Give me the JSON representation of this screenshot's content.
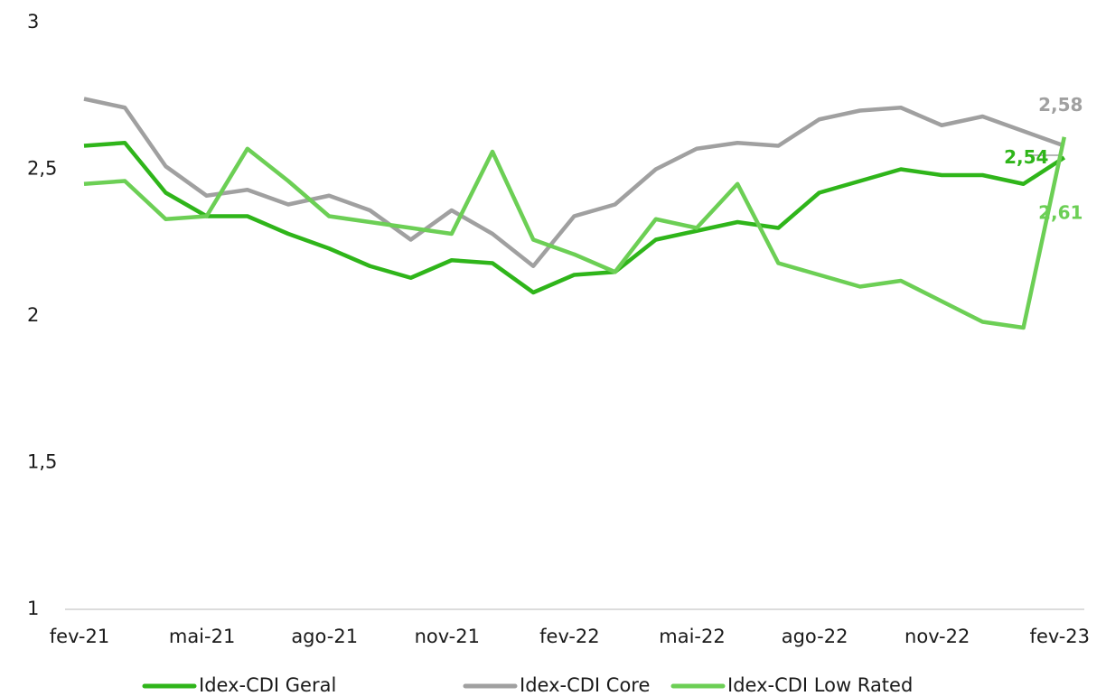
{
  "chart_data": {
    "type": "line",
    "categories": [
      "fev-21",
      null,
      null,
      "mai-21",
      null,
      null,
      "ago-21",
      null,
      null,
      "nov-21",
      null,
      null,
      "fev-22",
      null,
      null,
      "mai-22",
      null,
      null,
      "ago-22",
      null,
      null,
      "nov-22",
      null,
      null,
      "fev-23"
    ],
    "series": [
      {
        "name": "Idex-CDI Geral",
        "color": "#2fb51a",
        "values": [
          2.58,
          2.59,
          2.42,
          2.34,
          2.34,
          2.28,
          2.23,
          2.17,
          2.13,
          2.19,
          2.18,
          2.08,
          2.14,
          2.15,
          2.26,
          2.29,
          2.32,
          2.3,
          2.42,
          2.46,
          2.5,
          2.48,
          2.48,
          2.45,
          2.54
        ],
        "value_labels": [
          null,
          null,
          null,
          null,
          null,
          null,
          null,
          null,
          null,
          null,
          null,
          null,
          null,
          null,
          null,
          null,
          null,
          null,
          null,
          null,
          null,
          null,
          null,
          null,
          "2,54"
        ]
      },
      {
        "name": "Idex-CDI Core",
        "color": "#a0a0a0",
        "values": [
          2.74,
          2.71,
          2.51,
          2.41,
          2.43,
          2.38,
          2.41,
          2.36,
          2.26,
          2.36,
          2.28,
          2.17,
          2.34,
          2.38,
          2.5,
          2.57,
          2.59,
          2.58,
          2.67,
          2.7,
          2.71,
          2.65,
          2.68,
          2.63,
          2.58
        ],
        "value_labels": [
          null,
          null,
          null,
          null,
          null,
          null,
          null,
          null,
          null,
          null,
          null,
          null,
          null,
          null,
          null,
          null,
          null,
          null,
          null,
          null,
          null,
          null,
          null,
          null,
          "2,58"
        ]
      },
      {
        "name": "Idex-CDI Low Rated",
        "color": "#6ccf55",
        "values": [
          2.45,
          2.46,
          2.33,
          2.34,
          2.57,
          2.46,
          2.34,
          2.32,
          2.3,
          2.28,
          2.56,
          2.26,
          2.21,
          2.15,
          2.33,
          2.3,
          2.45,
          2.18,
          2.14,
          2.1,
          2.12,
          2.05,
          1.98,
          1.96,
          2.61
        ],
        "value_labels": [
          null,
          null,
          null,
          null,
          null,
          null,
          null,
          null,
          null,
          null,
          null,
          null,
          null,
          null,
          null,
          null,
          null,
          null,
          null,
          null,
          null,
          null,
          null,
          null,
          "2,61"
        ]
      }
    ],
    "ylim": [
      1,
      3
    ],
    "yticks": [
      1,
      {
        "value": 1.5,
        "label": "1,5"
      },
      2,
      {
        "value": 2.5,
        "label": "2,5"
      },
      3
    ],
    "grid": false,
    "legend": "bottom"
  }
}
